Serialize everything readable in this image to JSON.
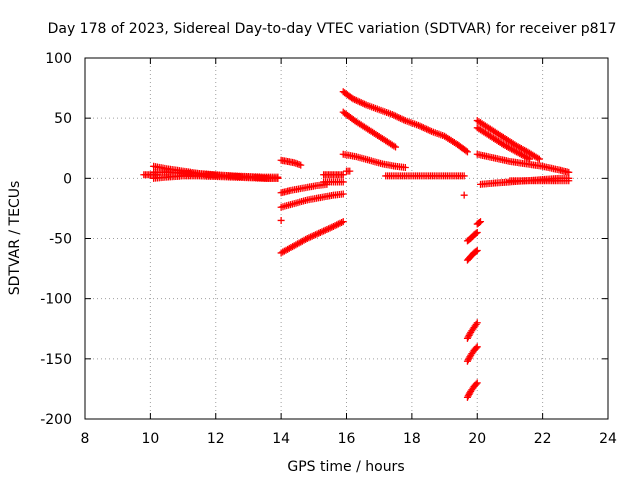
{
  "chart_data": {
    "type": "scatter",
    "title": "Day 178 of 2023, Sidereal Day-to-day VTEC variation (SDTVAR) for receiver p817",
    "xlabel": "GPS time / hours",
    "ylabel": "SDTVAR / TECUs",
    "xlim": [
      8,
      24
    ],
    "ylim": [
      -200,
      100
    ],
    "xticks": [
      8,
      10,
      12,
      14,
      16,
      18,
      20,
      22,
      24
    ],
    "yticks": [
      -200,
      -150,
      -100,
      -50,
      0,
      50,
      100
    ],
    "grid": true,
    "marker": "plus",
    "color": "#ff0000",
    "segments": [
      {
        "x": [
          9.8,
          10.0,
          10.2
        ],
        "y": [
          3,
          3,
          3
        ]
      },
      {
        "x": [
          10.1,
          10.5,
          11.0,
          11.5,
          12.0,
          12.5,
          13.0,
          13.5,
          13.9
        ],
        "y": [
          10,
          8,
          6,
          4,
          3,
          2,
          1.5,
          1,
          1
        ]
      },
      {
        "x": [
          10.1,
          10.5,
          11.0,
          11.5,
          12.0,
          12.5,
          13.0,
          13.5,
          13.9
        ],
        "y": [
          0,
          1,
          2,
          2,
          1.5,
          1,
          0.5,
          0,
          0
        ]
      },
      {
        "x": [
          10.1,
          10.6,
          11.2,
          11.8,
          12.4,
          13.0,
          13.6,
          13.9
        ],
        "y": [
          5,
          5,
          4,
          3,
          2,
          1,
          0,
          0
        ]
      },
      {
        "x": [
          14.0,
          14.2,
          14.4,
          14.6
        ],
        "y": [
          15,
          14,
          13,
          11
        ]
      },
      {
        "x": [
          14.0,
          14.3,
          14.7,
          15.1,
          15.4
        ],
        "y": [
          -12,
          -10,
          -8,
          -6,
          -5
        ]
      },
      {
        "x": [
          14.0,
          14.4,
          14.8,
          15.2,
          15.6,
          15.9
        ],
        "y": [
          -24,
          -21,
          -18,
          -16,
          -14,
          -13
        ]
      },
      {
        "x": [
          14.0
        ],
        "y": [
          -35
        ]
      },
      {
        "x": [
          14.0,
          14.4,
          14.8,
          15.2,
          15.6,
          15.9
        ],
        "y": [
          -62,
          -56,
          -50,
          -45,
          -40,
          -36
        ]
      },
      {
        "x": [
          15.3,
          15.5,
          15.7,
          15.9
        ],
        "y": [
          3,
          3,
          3,
          3
        ]
      },
      {
        "x": [
          15.3,
          15.6,
          15.9
        ],
        "y": [
          -3,
          -3,
          -3
        ]
      },
      {
        "x": [
          16.0,
          16.1
        ],
        "y": [
          6,
          6
        ]
      },
      {
        "x": [
          15.9,
          16.2,
          16.6,
          17.0,
          17.4,
          17.8,
          18.2,
          18.6,
          19.0,
          19.4,
          19.7
        ],
        "y": [
          72,
          66,
          61,
          57,
          53,
          48,
          44,
          39,
          35,
          28,
          22
        ]
      },
      {
        "x": [
          15.9,
          16.3,
          16.7,
          17.1,
          17.5
        ],
        "y": [
          55,
          47,
          40,
          33,
          26
        ]
      },
      {
        "x": [
          15.9,
          16.3,
          16.7,
          17.1,
          17.5,
          17.8
        ],
        "y": [
          20,
          18,
          15,
          12,
          10,
          9
        ]
      },
      {
        "x": [
          17.2,
          17.6,
          18.0,
          18.4,
          18.8,
          19.2,
          19.6
        ],
        "y": [
          2,
          2,
          2,
          2,
          2,
          2,
          2
        ]
      },
      {
        "x": [
          19.6
        ],
        "y": [
          -14
        ]
      },
      {
        "x": [
          19.7,
          19.8,
          19.9,
          20.0
        ],
        "y": [
          -52,
          -50,
          -47,
          -45
        ]
      },
      {
        "x": [
          20.0,
          20.1
        ],
        "y": [
          -38,
          -36
        ]
      },
      {
        "x": [
          19.7,
          19.8,
          19.9,
          20.0
        ],
        "y": [
          -68,
          -65,
          -62,
          -60
        ]
      },
      {
        "x": [
          19.7,
          19.8,
          19.9,
          20.0
        ],
        "y": [
          -133,
          -128,
          -124,
          -120
        ]
      },
      {
        "x": [
          19.7,
          19.8,
          19.9,
          20.0
        ],
        "y": [
          -152,
          -147,
          -143,
          -140
        ]
      },
      {
        "x": [
          19.7,
          19.8,
          19.9,
          20.0
        ],
        "y": [
          -182,
          -177,
          -173,
          -170
        ]
      },
      {
        "x": [
          20.0,
          20.4,
          20.8,
          21.2,
          21.6,
          21.9
        ],
        "y": [
          48,
          41,
          34,
          27,
          21,
          16
        ]
      },
      {
        "x": [
          20.0,
          20.4,
          20.8,
          21.2,
          21.6
        ],
        "y": [
          42,
          35,
          28,
          22,
          16
        ]
      },
      {
        "x": [
          20.0,
          20.5,
          21.0,
          21.5,
          22.0,
          22.5,
          22.8
        ],
        "y": [
          20,
          17,
          14,
          12,
          10,
          7,
          5
        ]
      },
      {
        "x": [
          20.1,
          20.5,
          21.0,
          21.5,
          22.0,
          22.5,
          22.8
        ],
        "y": [
          -5,
          -4,
          -3,
          -2,
          -1,
          0,
          0
        ]
      },
      {
        "x": [
          21.0,
          21.5,
          22.0,
          22.5,
          22.8
        ],
        "y": [
          -2,
          -2,
          -2,
          -2,
          -2
        ]
      }
    ]
  }
}
